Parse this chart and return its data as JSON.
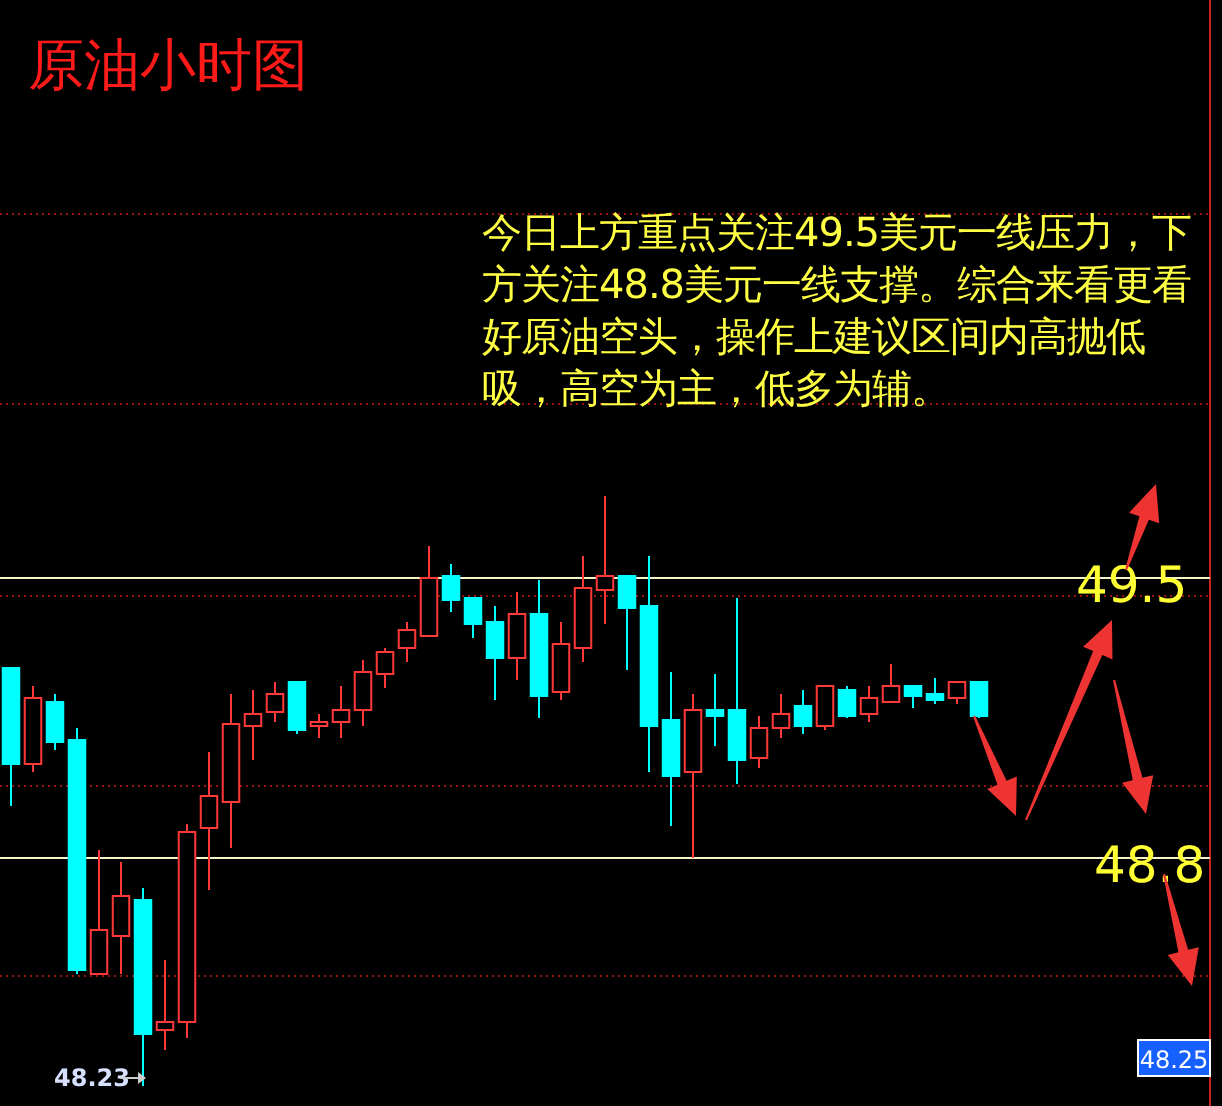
{
  "chart_data": {
    "type": "candlestick",
    "title": "原油小时图",
    "categories": [
      null,
      null,
      null,
      null,
      null,
      null,
      null,
      null,
      null,
      null,
      null,
      null,
      null,
      null,
      null,
      null,
      null,
      null,
      null,
      null,
      null,
      null,
      null,
      null,
      null,
      null,
      null,
      null,
      null,
      null,
      null,
      null,
      null,
      null,
      null,
      null,
      null,
      null,
      null,
      null,
      null,
      null,
      null,
      null,
      null
    ],
    "ohlc": [
      [
        49.275,
        49.275,
        48.93,
        49.035
      ],
      [
        49.035,
        49.23,
        49.015,
        49.2
      ],
      [
        49.19,
        49.21,
        49.07,
        49.09
      ],
      [
        49.095,
        49.125,
        48.51,
        48.52
      ],
      [
        48.51,
        48.82,
        48.51,
        48.62
      ],
      [
        48.605,
        48.79,
        48.51,
        48.705
      ],
      [
        48.695,
        48.725,
        48.23,
        48.36
      ],
      [
        48.37,
        48.545,
        48.32,
        48.39
      ],
      [
        48.39,
        48.885,
        48.35,
        48.865
      ],
      [
        48.875,
        49.065,
        48.72,
        48.955
      ],
      [
        48.94,
        49.21,
        48.825,
        49.135
      ],
      [
        49.13,
        49.22,
        49.045,
        49.16
      ],
      [
        49.165,
        49.24,
        49.14,
        49.21
      ],
      [
        49.24,
        49.24,
        49.11,
        49.12
      ],
      [
        49.13,
        49.16,
        49.1,
        49.14
      ],
      [
        49.14,
        49.23,
        49.1,
        49.17
      ],
      [
        49.17,
        49.295,
        49.13,
        49.265
      ],
      [
        49.26,
        49.325,
        49.225,
        49.315
      ],
      [
        49.325,
        49.39,
        49.29,
        49.37
      ],
      [
        49.355,
        49.58,
        49.355,
        49.5
      ],
      [
        49.505,
        49.535,
        49.415,
        49.445
      ],
      [
        49.45,
        49.45,
        49.35,
        49.385
      ],
      [
        49.39,
        49.43,
        49.195,
        49.3
      ],
      [
        49.3,
        49.465,
        49.245,
        49.41
      ],
      [
        49.41,
        49.495,
        49.15,
        49.205
      ],
      [
        49.215,
        49.39,
        49.195,
        49.335
      ],
      [
        49.325,
        49.555,
        49.29,
        49.475
      ],
      [
        49.47,
        49.705,
        49.385,
        49.505
      ],
      [
        49.505,
        49.505,
        49.27,
        49.425
      ],
      [
        49.43,
        49.555,
        49.015,
        49.13
      ],
      [
        49.145,
        49.265,
        48.88,
        49.005
      ],
      [
        49.015,
        49.21,
        48.8,
        49.17
      ],
      [
        49.17,
        49.26,
        49.08,
        49.155
      ],
      [
        49.17,
        49.45,
        48.985,
        49.045
      ],
      [
        49.05,
        49.155,
        49.025,
        49.125
      ],
      [
        49.125,
        49.21,
        49.1,
        49.16
      ],
      [
        49.18,
        49.22,
        49.11,
        49.13
      ],
      [
        49.13,
        49.23,
        49.12,
        49.23
      ],
      [
        49.22,
        49.23,
        49.15,
        49.155
      ],
      [
        49.16,
        49.23,
        49.14,
        49.2
      ],
      [
        49.19,
        49.285,
        49.19,
        49.23
      ],
      [
        49.23,
        49.23,
        49.175,
        49.205
      ],
      [
        49.21,
        49.25,
        49.185,
        49.195
      ],
      [
        49.2,
        49.24,
        49.185,
        49.24
      ],
      [
        49.24,
        49.24,
        49.15,
        49.155
      ]
    ],
    "ylim": [
      48.18,
      50.945
    ],
    "yticks": [
      {
        "value": 50.41,
        "label": null
      },
      {
        "value": 49.935,
        "label": null
      },
      {
        "value": 49.455,
        "label": null
      },
      {
        "value": 48.98,
        "label": null
      },
      {
        "value": 48.505,
        "label": null
      }
    ],
    "grid": "y",
    "ref_lines": [
      {
        "axis": "y",
        "value": 49.5,
        "label": "49.5",
        "color": "#f4f4c8"
      },
      {
        "axis": "y",
        "value": 48.8,
        "label": "48.8",
        "color": "#f4f4c8"
      }
    ],
    "annotations": [
      "今日上方重点关注49.5美元一线压力，下方关注48.8美元一线支撑。综合来看更看好原油空头，操作上建议区间内高抛低吸，高空为主，低多为辅。",
      "48.23",
      "48.25"
    ]
  }
}
